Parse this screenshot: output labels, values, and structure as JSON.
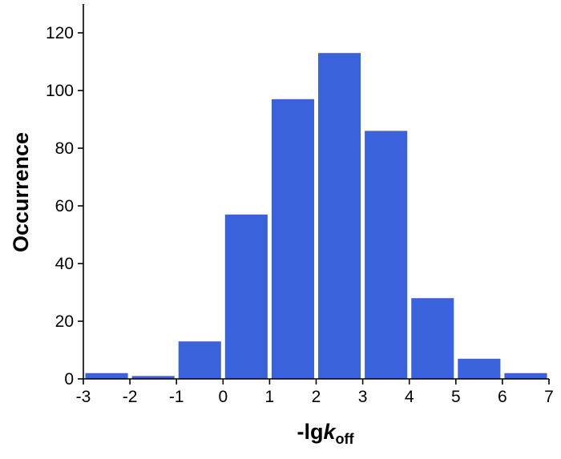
{
  "chart_data": {
    "type": "bar",
    "histogram": true,
    "bin_edges": [
      -3,
      -2,
      -1,
      0,
      1,
      2,
      3,
      4,
      5,
      6,
      7
    ],
    "values": [
      2,
      1,
      13,
      57,
      97,
      113,
      86,
      28,
      7,
      2
    ],
    "xlim": [
      -3,
      7
    ],
    "ylim": [
      0,
      130
    ],
    "x_ticks": [
      "-3",
      "-2",
      "-1",
      "0",
      "1",
      "2",
      "3",
      "4",
      "5",
      "6",
      "7"
    ],
    "y_ticks": [
      "0",
      "20",
      "40",
      "60",
      "80",
      "100",
      "120"
    ],
    "xlabel": {
      "main": "-lg",
      "italic": "k",
      "subscript": "off"
    },
    "ylabel": "Occurrence",
    "bar_color": "#3a62dc",
    "axis_color": "#000000",
    "grid": false,
    "legend": "none"
  }
}
